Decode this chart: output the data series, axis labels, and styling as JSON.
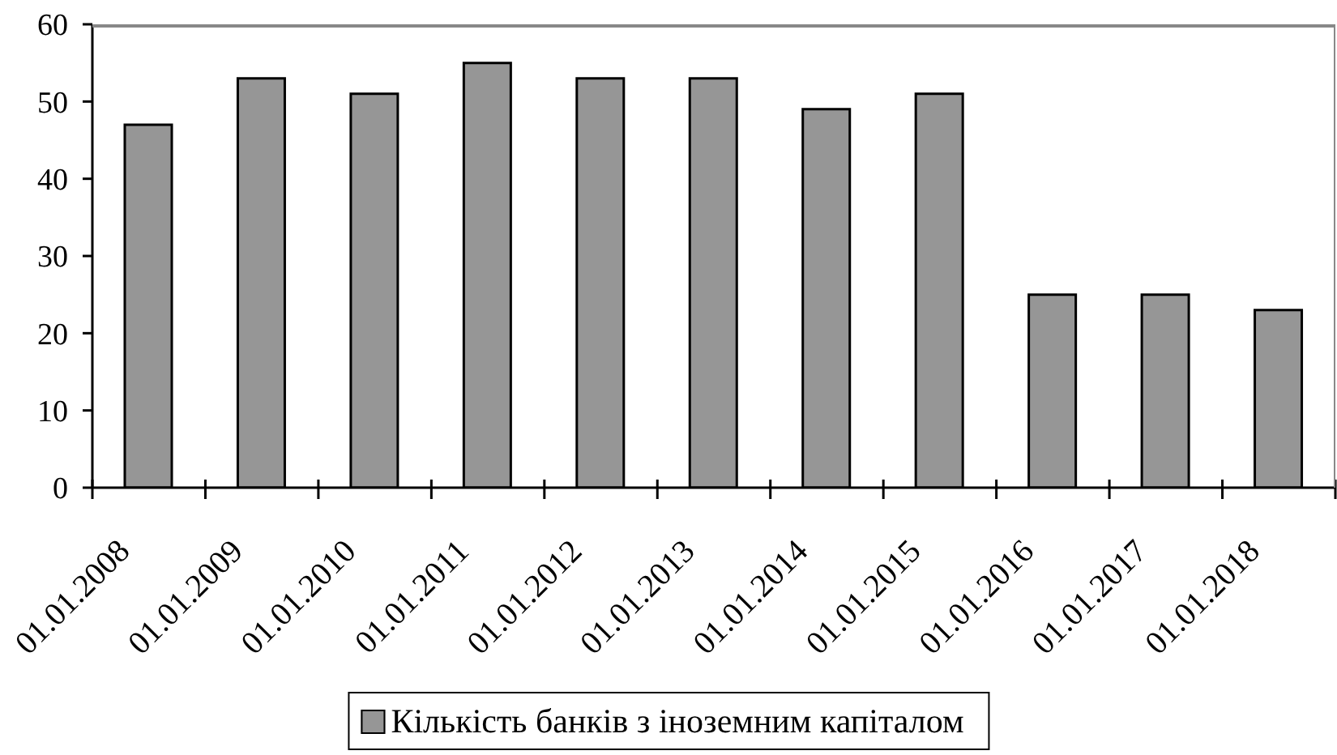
{
  "chart_data": {
    "type": "bar",
    "categories": [
      "01.01.2008",
      "01.01.2009",
      "01.01.2010",
      "01.01.2011",
      "01.01.2012",
      "01.01.2013",
      "01.01.2014",
      "01.01.2015",
      "01.01.2016",
      "01.01.2017",
      "01.01.2018"
    ],
    "series": [
      {
        "name": "Кількість банків з іноземним капіталом",
        "color": "#969696",
        "values": [
          47,
          53,
          51,
          55,
          53,
          53,
          49,
          51,
          25,
          25,
          23
        ]
      }
    ],
    "ylim": [
      0,
      60
    ],
    "yticks": [
      0,
      10,
      20,
      30,
      40,
      50,
      60
    ],
    "legend": "bottom"
  }
}
